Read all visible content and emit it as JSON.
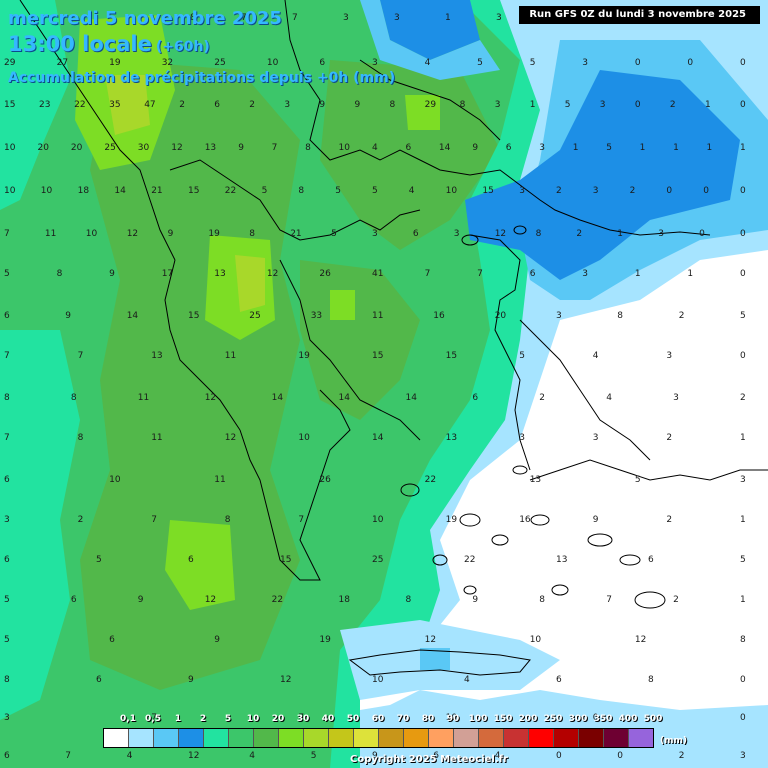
{
  "header": {
    "date_line": "mercredi 5 novembre 2025",
    "time_line": "13:00 locale",
    "lead_time": "(+60h)",
    "subtitle": "Accumulation de précipitations depuis +0h (mm)"
  },
  "run_label": "Run GFS 0Z du lundi 3 novembre 2025",
  "legend": {
    "labels": [
      "0,1",
      "0,5",
      "1",
      "2",
      "5",
      "10",
      "20",
      "30",
      "40",
      "50",
      "60",
      "70",
      "80",
      "90",
      "100",
      "150",
      "200",
      "250",
      "300",
      "350",
      "400",
      "500"
    ],
    "colors": [
      "#ffffff",
      "#a6e4ff",
      "#5ac8f5",
      "#1d8fe6",
      "#22e3a0",
      "#3cc66a",
      "#52b84a",
      "#7ddd25",
      "#a8d82a",
      "#c4c61a",
      "#dde23a",
      "#c8961a",
      "#e79a10",
      "#ffa060",
      "#d2a096",
      "#d46a3c",
      "#c83232",
      "#ff0000",
      "#b40000",
      "#7a0000",
      "#6e0032",
      "#9664dc"
    ],
    "unit": "(mm)"
  },
  "copyright": "Copyright 2025 Meteociel.fr",
  "zones": {
    "sea_white": "#ffffff",
    "light_blue": "#a6e4ff",
    "mid_blue": "#5ac8f5",
    "deep_blue": "#1d8fe6",
    "aqua": "#22e3a0",
    "green": "#3cc66a",
    "dark_green": "#52b84a",
    "lime": "#7ddd25",
    "olive": "#a8d82a",
    "yellow": "#c4c61a"
  },
  "grid_values": [
    "8",
    "7",
    "7",
    "3",
    "3",
    "1",
    "3",
    "0",
    "1",
    "0",
    "0",
    "29",
    "27",
    "19",
    "32",
    "25",
    "10",
    "6",
    "3",
    "4",
    "5",
    "5",
    "3",
    "0",
    "0",
    "0",
    "15",
    "23",
    "22",
    "35",
    "47",
    "2",
    "6",
    "2",
    "3",
    "9",
    "9",
    "8",
    "29",
    "8",
    "3",
    "1",
    "5",
    "3",
    "0",
    "2",
    "1",
    "0",
    "10",
    "20",
    "20",
    "25",
    "30",
    "12",
    "13",
    "9",
    "7",
    "8",
    "10",
    "4",
    "6",
    "14",
    "9",
    "6",
    "3",
    "1",
    "5",
    "1",
    "1",
    "1",
    "1",
    "10",
    "10",
    "18",
    "14",
    "21",
    "15",
    "22",
    "5",
    "8",
    "5",
    "5",
    "4",
    "10",
    "15",
    "3",
    "2",
    "3",
    "2",
    "0",
    "0",
    "0",
    "7",
    "11",
    "10",
    "12",
    "9",
    "19",
    "8",
    "21",
    "5",
    "3",
    "6",
    "3",
    "12",
    "8",
    "2",
    "1",
    "3",
    "0",
    "0",
    "5",
    "8",
    "9",
    "17",
    "13",
    "12",
    "26",
    "41",
    "7",
    "7",
    "6",
    "3",
    "1",
    "1",
    "0",
    "6",
    "9",
    "14",
    "15",
    "25",
    "33",
    "11",
    "16",
    "20",
    "3",
    "8",
    "2",
    "5",
    "7",
    "7",
    "13",
    "11",
    "19",
    "15",
    "15",
    "5",
    "4",
    "3",
    "0",
    "8",
    "8",
    "11",
    "12",
    "14",
    "14",
    "14",
    "6",
    "2",
    "4",
    "3",
    "2",
    "7",
    "8",
    "11",
    "12",
    "10",
    "14",
    "13",
    "3",
    "3",
    "2",
    "1",
    "6",
    "10",
    "11",
    "26",
    "22",
    "13",
    "5",
    "3",
    "3",
    "2",
    "7",
    "8",
    "7",
    "10",
    "19",
    "16",
    "9",
    "2",
    "1",
    "6",
    "5",
    "6",
    "15",
    "25",
    "22",
    "13",
    "6",
    "5",
    "5",
    "6",
    "9",
    "12",
    "22",
    "18",
    "8",
    "9",
    "8",
    "7",
    "2",
    "1",
    "5",
    "6",
    "9",
    "19",
    "12",
    "10",
    "12",
    "8",
    "8",
    "6",
    "9",
    "12",
    "10",
    "4",
    "6",
    "8",
    "0",
    "3",
    "7",
    "7",
    "10",
    "0",
    "0",
    "6",
    "7",
    "4",
    "12",
    "4",
    "5",
    "9",
    "6",
    "4",
    "0",
    "0",
    "2",
    "3"
  ]
}
